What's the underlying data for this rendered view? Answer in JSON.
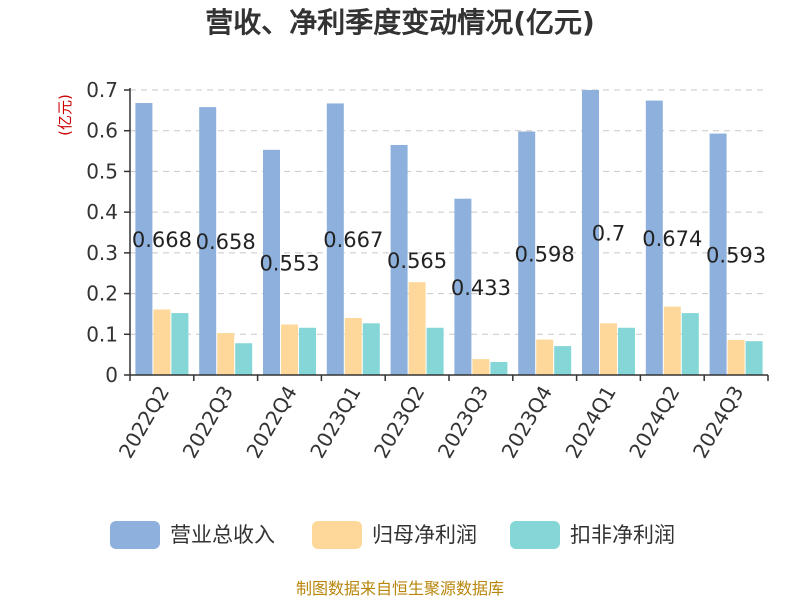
{
  "title": "营收、净利季度变动情况(亿元)",
  "source": "制图数据来自恒生聚源数据库",
  "chart_data": {
    "type": "bar",
    "title": "营收、净利季度变动情况(亿元)",
    "ylabel": "(亿元)",
    "ylim": [
      0,
      0.7
    ],
    "yticks": [
      "0",
      "0.1",
      "0.2",
      "0.3",
      "0.4",
      "0.5",
      "0.6",
      "0.7"
    ],
    "grid": true,
    "legend_position": "bottom",
    "categories": [
      "2022Q2",
      "2022Q3",
      "2022Q4",
      "2023Q1",
      "2023Q2",
      "2023Q3",
      "2023Q4",
      "2024Q1",
      "2024Q2",
      "2024Q3"
    ],
    "series": [
      {
        "name": "营业总收入",
        "color": "#8eb0dc",
        "values": [
          0.668,
          0.658,
          0.553,
          0.667,
          0.565,
          0.433,
          0.598,
          0.7,
          0.674,
          0.593
        ],
        "labels": [
          "0.668",
          "0.658",
          "0.553",
          "0.667",
          "0.565",
          "0.433",
          "0.598",
          "0.7",
          "0.674",
          "0.593"
        ]
      },
      {
        "name": "归母净利润",
        "color": "#fdd89a",
        "values": [
          0.161,
          0.103,
          0.124,
          0.14,
          0.228,
          0.039,
          0.087,
          0.127,
          0.168,
          0.086
        ]
      },
      {
        "name": "扣非净利润",
        "color": "#85d6d6",
        "values": [
          0.152,
          0.078,
          0.116,
          0.127,
          0.116,
          0.032,
          0.071,
          0.116,
          0.152,
          0.083
        ]
      }
    ]
  }
}
